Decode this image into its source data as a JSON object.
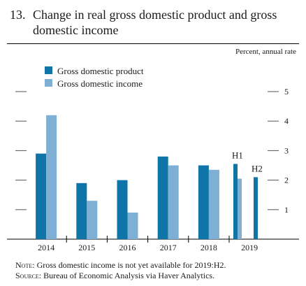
{
  "figure": {
    "number": "13.",
    "title": "Change in real gross domestic product and gross domestic income",
    "units_label": "Percent, annual rate"
  },
  "notes": {
    "note_label": "Note:",
    "note_text": "Gross domestic income is not yet available for 2019:H2.",
    "source_label": "Source:",
    "source_text": "Bureau of Economic Analysis via Haver Analytics."
  },
  "colors": {
    "gdp": "#0f75a8",
    "gdi": "#7eb0d6"
  },
  "chart_data": {
    "type": "bar",
    "categories": [
      "2014",
      "2015",
      "2016",
      "2017",
      "2018",
      "2019"
    ],
    "series": [
      {
        "name": "Gross domestic product",
        "values": [
          2.9,
          1.9,
          2.0,
          2.8,
          2.5,
          null
        ]
      },
      {
        "name": "Gross domestic income",
        "values": [
          4.2,
          1.3,
          0.9,
          2.5,
          2.35,
          null
        ]
      }
    ],
    "split_2019": {
      "H1": {
        "label": "H1",
        "gdp": 2.55,
        "gdi": 2.05
      },
      "H2": {
        "label": "H2",
        "gdp": 2.1
      }
    },
    "ylim": [
      0,
      5
    ],
    "yticks": [
      1,
      2,
      3,
      4,
      5
    ],
    "legend_placement": "top-left"
  }
}
